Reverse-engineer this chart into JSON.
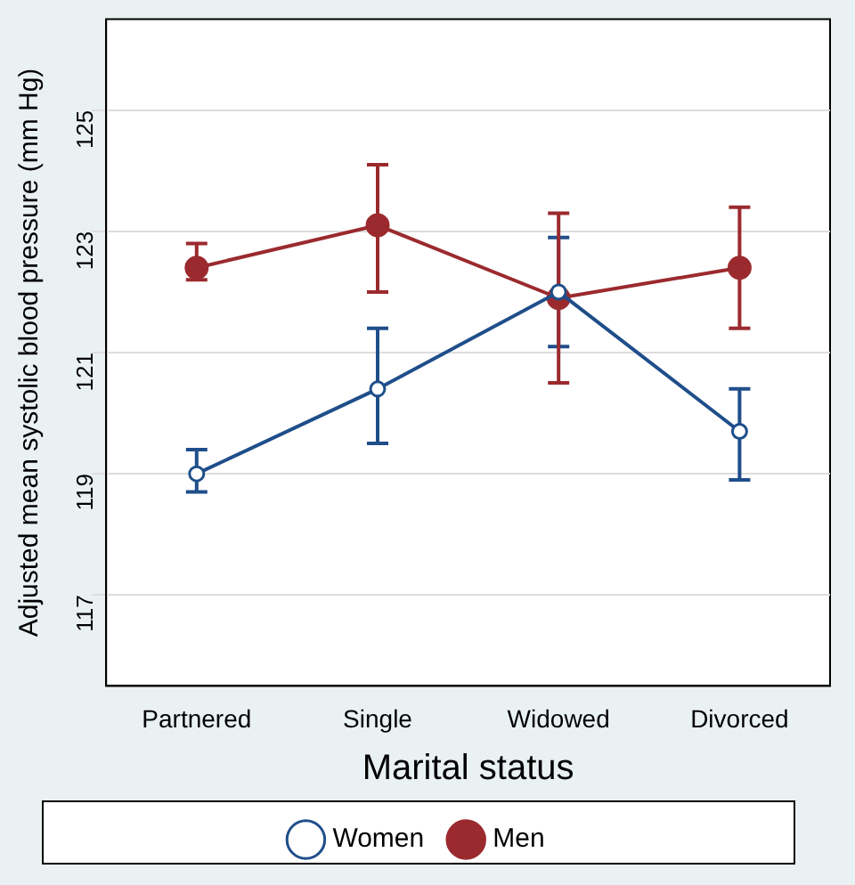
{
  "chart_data": {
    "type": "line",
    "xlabel": "Marital status",
    "ylabel": "Adjusted mean systolic blood pressure (mm Hg)",
    "categories": [
      "Partnered",
      "Single",
      "Widowed",
      "Divorced"
    ],
    "series": [
      {
        "name": "Women",
        "color": "#1f4e8a",
        "values": [
          119.0,
          120.4,
          122.0,
          119.7
        ],
        "errors": [
          [
            118.7,
            119.4
          ],
          [
            119.5,
            121.4
          ],
          [
            121.1,
            122.9
          ],
          [
            118.9,
            120.4
          ]
        ]
      },
      {
        "name": "Men",
        "color": "#9b2a2e",
        "values": [
          122.4,
          123.1,
          121.9,
          122.4
        ],
        "errors": [
          [
            122.2,
            122.8
          ],
          [
            122.0,
            124.1
          ],
          [
            120.5,
            123.3
          ],
          [
            121.4,
            123.4
          ]
        ]
      }
    ],
    "ylim": [
      115.5,
      126.5
    ],
    "yticks": [
      117,
      119,
      121,
      123,
      125
    ],
    "grid": "y",
    "legend": "bottom",
    "marker": "circle",
    "line_style": "solid"
  }
}
